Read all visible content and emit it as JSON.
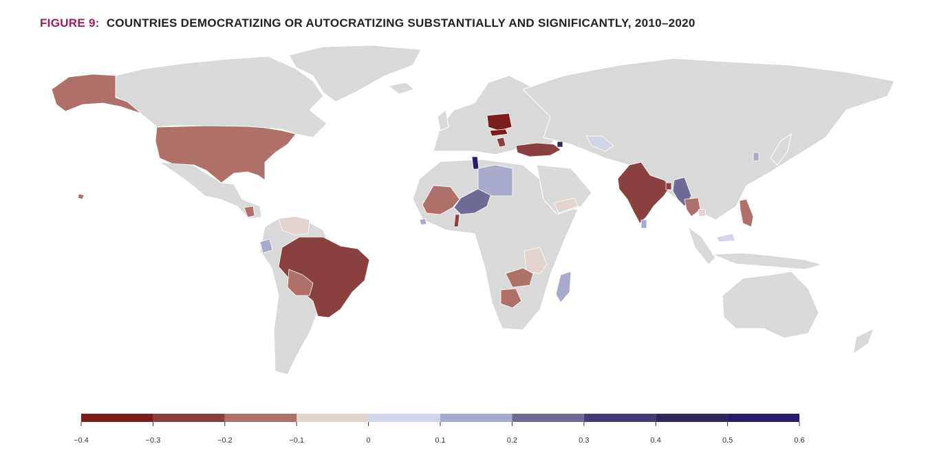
{
  "title": {
    "prefix": "FIGURE 9:",
    "text": "COUNTRIES DEMOCRATIZING OR AUTOCRATIZING SUBSTANTIALLY AND SIGNIFICANTLY, 2010–2020"
  },
  "colors": {
    "title_accent": "#a3195b",
    "land": "#d9d9d9"
  },
  "legend": {
    "ticks": [
      "−0.4",
      "−0.3",
      "−0.2",
      "−0.1",
      "0",
      "0.1",
      "0.2",
      "0.3",
      "0.4",
      "0.5",
      "0.6"
    ],
    "bins": [
      {
        "from": -0.4,
        "to": -0.3,
        "color": "#7b1c1c"
      },
      {
        "from": -0.3,
        "to": -0.2,
        "color": "#8a403e"
      },
      {
        "from": -0.2,
        "to": -0.1,
        "color": "#b0706a"
      },
      {
        "from": -0.1,
        "to": 0.0,
        "color": "#e2d3cf"
      },
      {
        "from": 0.0,
        "to": 0.1,
        "color": "#d2d4e8"
      },
      {
        "from": 0.1,
        "to": 0.2,
        "color": "#a8aacb"
      },
      {
        "from": 0.2,
        "to": 0.3,
        "color": "#6e6c96"
      },
      {
        "from": 0.3,
        "to": 0.4,
        "color": "#463a79"
      },
      {
        "from": 0.4,
        "to": 0.5,
        "color": "#2d2758"
      },
      {
        "from": 0.5,
        "to": 0.6,
        "color": "#271c68"
      }
    ]
  },
  "map": {
    "countries": [
      {
        "id": "alaska",
        "change": -0.15
      },
      {
        "id": "united-states",
        "change": -0.15
      },
      {
        "id": "hawaii",
        "change": -0.15
      },
      {
        "id": "nicaragua",
        "change": -0.15
      },
      {
        "id": "venezuela",
        "change": -0.05
      },
      {
        "id": "ecuador",
        "change": 0.15
      },
      {
        "id": "brazil",
        "change": -0.25
      },
      {
        "id": "bolivia",
        "change": -0.15
      },
      {
        "id": "mali",
        "change": -0.15
      },
      {
        "id": "niger",
        "change": 0.25
      },
      {
        "id": "benin",
        "change": -0.25
      },
      {
        "id": "sierra-leone",
        "change": 0.15
      },
      {
        "id": "tunisia",
        "change": 0.55
      },
      {
        "id": "libya",
        "change": 0.15
      },
      {
        "id": "poland",
        "change": -0.35
      },
      {
        "id": "hungary",
        "change": -0.35
      },
      {
        "id": "serbia",
        "change": -0.25
      },
      {
        "id": "turkey",
        "change": -0.25
      },
      {
        "id": "armenia",
        "change": 0.45
      },
      {
        "id": "kyrgyzstan",
        "change": 0.05
      },
      {
        "id": "yemen",
        "change": -0.05
      },
      {
        "id": "india",
        "change": -0.25
      },
      {
        "id": "bangladesh",
        "change": -0.25
      },
      {
        "id": "myanmar",
        "change": 0.25
      },
      {
        "id": "thailand",
        "change": -0.15
      },
      {
        "id": "cambodia",
        "change": -0.05
      },
      {
        "id": "sri-lanka",
        "change": 0.15
      },
      {
        "id": "philippines",
        "change": -0.15
      },
      {
        "id": "taiwan",
        "change": 0.15
      },
      {
        "id": "tanzania",
        "change": -0.05
      },
      {
        "id": "zambia",
        "change": -0.15
      },
      {
        "id": "botswana",
        "change": -0.15
      },
      {
        "id": "madagascar",
        "change": 0.15
      },
      {
        "id": "malaysia",
        "change": 0.05
      }
    ]
  }
}
